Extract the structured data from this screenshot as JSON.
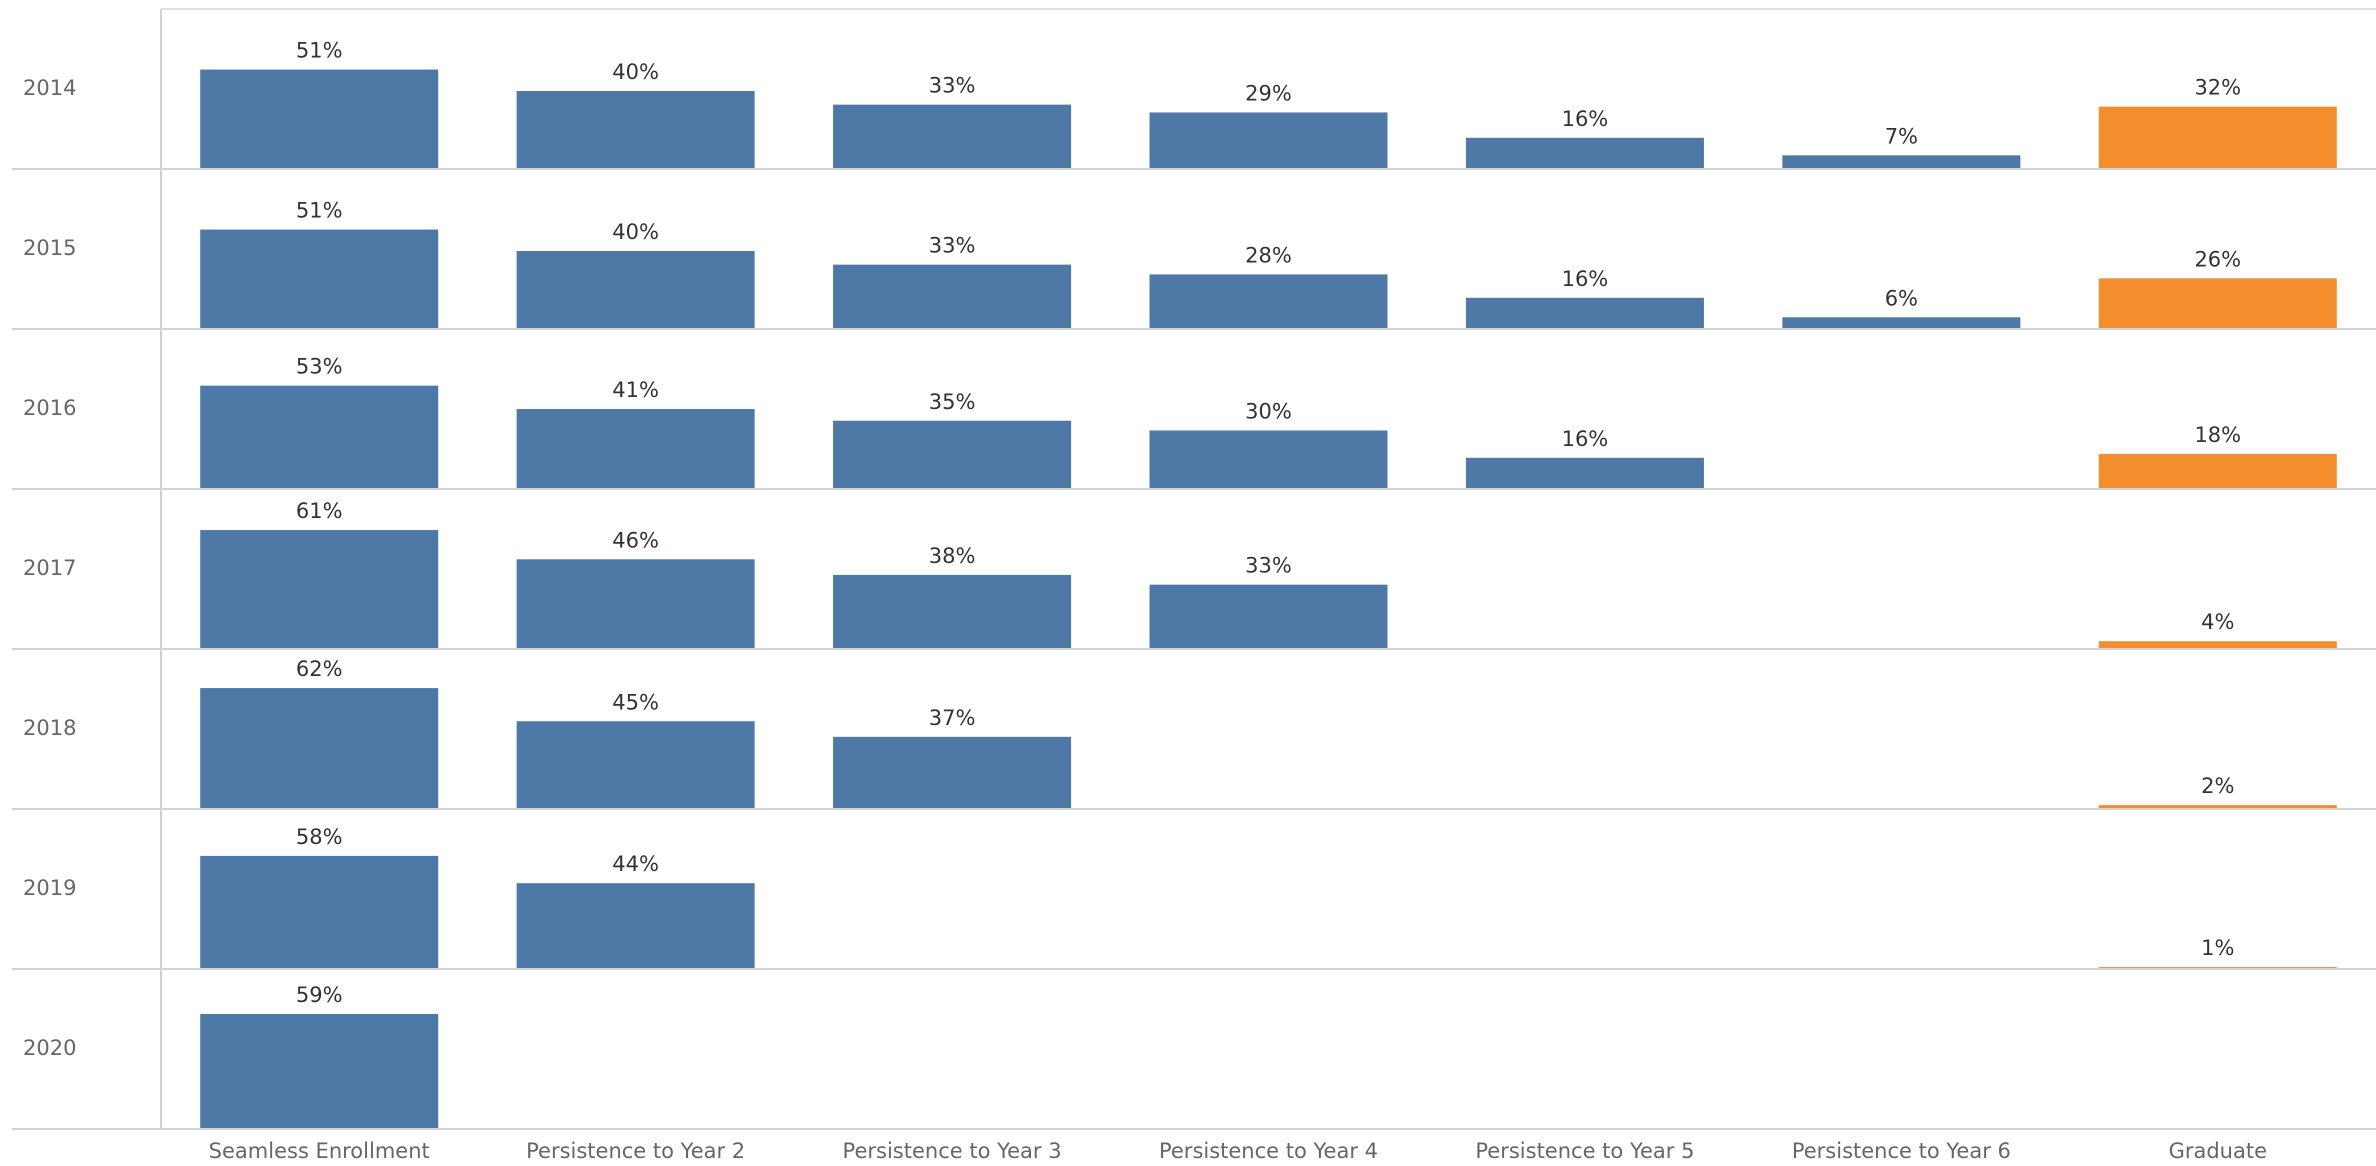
{
  "chart_data": {
    "type": "bar",
    "categories": [
      "Seamless Enrollment",
      "Persistence to Year 2",
      "Persistence to Year 3",
      "Persistence to Year 4",
      "Persistence to Year 5",
      "Persistence to Year 6",
      "Graduate"
    ],
    "category_colors": [
      "#4e79a7",
      "#4e79a7",
      "#4e79a7",
      "#4e79a7",
      "#4e79a7",
      "#4e79a7",
      "#f28e2b"
    ],
    "ylim": [
      0,
      80
    ],
    "series": [
      {
        "name": "2014",
        "values": [
          51,
          40,
          33,
          29,
          16,
          7,
          32
        ],
        "value_labels": [
          "51%",
          "40%",
          "33%",
          "29%",
          "16%",
          "7%",
          "32%"
        ]
      },
      {
        "name": "2015",
        "values": [
          51,
          40,
          33,
          28,
          16,
          6,
          26
        ],
        "value_labels": [
          "51%",
          "40%",
          "33%",
          "28%",
          "16%",
          "6%",
          "26%"
        ]
      },
      {
        "name": "2016",
        "values": [
          53,
          41,
          35,
          30,
          16,
          null,
          18
        ],
        "value_labels": [
          "53%",
          "41%",
          "35%",
          "30%",
          "16%",
          null,
          "18%"
        ]
      },
      {
        "name": "2017",
        "values": [
          61,
          46,
          38,
          33,
          null,
          null,
          4
        ],
        "value_labels": [
          "61%",
          "46%",
          "38%",
          "33%",
          null,
          null,
          "4%"
        ]
      },
      {
        "name": "2018",
        "values": [
          62,
          45,
          37,
          null,
          null,
          null,
          2
        ],
        "value_labels": [
          "62%",
          "45%",
          "37%",
          null,
          null,
          null,
          "2%"
        ]
      },
      {
        "name": "2019",
        "values": [
          58,
          44,
          null,
          null,
          null,
          null,
          1
        ],
        "value_labels": [
          "58%",
          "44%",
          null,
          null,
          null,
          null,
          "1%"
        ]
      },
      {
        "name": "2020",
        "values": [
          59,
          null,
          null,
          null,
          null,
          null,
          null
        ],
        "value_labels": [
          "59%",
          null,
          null,
          null,
          null,
          null,
          null
        ]
      }
    ]
  }
}
